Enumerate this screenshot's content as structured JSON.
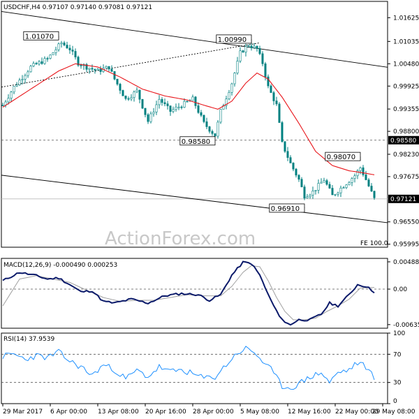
{
  "chart_data": [
    {
      "type": "candlestick",
      "header": "USDCHF,H4  0.97107 0.97140 0.97081 0.97121",
      "watermark": "ActionForex.com",
      "fe_label": "FE 100.0",
      "y_ticks": [
        "1.01625",
        "1.01035",
        "1.00480",
        "0.99925",
        "0.99355",
        "0.98800",
        "0.98230",
        "0.97675",
        "0.96550",
        "0.95995"
      ],
      "ylim": [
        0.9592,
        1.0203
      ],
      "current_price": {
        "value": 0.97121,
        "label": "0.97121"
      },
      "level_line": {
        "value": 0.9858,
        "label": "0.98580"
      },
      "annotations": [
        {
          "label": "1.01070",
          "value": 1.0107,
          "bar": 20
        },
        {
          "label": "1.00990",
          "value": 1.0099,
          "bar": 89
        },
        {
          "label": "0.98580",
          "value": 0.9858,
          "bar": 76
        },
        {
          "label": "0.98070",
          "value": 0.9807,
          "bar": 128
        },
        {
          "label": "0.96910",
          "value": 0.9691,
          "bar": 108
        }
      ],
      "channel_lines": [
        {
          "points": [
            [
              0,
              1.0178
            ],
            [
              133,
              1.0044
            ]
          ],
          "style": "solid"
        },
        {
          "points": [
            [
              0,
              0.9771
            ],
            [
              133,
              0.9657
            ]
          ],
          "style": "solid"
        },
        {
          "points": [
            [
              0,
              0.999
            ],
            [
              92,
              1.01
            ]
          ],
          "style": "dashed"
        }
      ],
      "price_anchors": [
        [
          0,
          0.9945
        ],
        [
          4,
          0.999
        ],
        [
          10,
          1.004
        ],
        [
          16,
          1.006
        ],
        [
          21,
          1.01
        ],
        [
          24,
          1.0085
        ],
        [
          27,
          1.005
        ],
        [
          30,
          1.004
        ],
        [
          34,
          1.003
        ],
        [
          38,
          1.004
        ],
        [
          40,
          1.001
        ],
        [
          44,
          0.996
        ],
        [
          48,
          0.998
        ],
        [
          52,
          0.9905
        ],
        [
          56,
          0.996
        ],
        [
          60,
          0.993
        ],
        [
          64,
          0.9945
        ],
        [
          68,
          0.996
        ],
        [
          72,
          0.99
        ],
        [
          76,
          0.987
        ],
        [
          78,
          0.993
        ],
        [
          82,
          1.0
        ],
        [
          85,
          1.0075
        ],
        [
          88,
          1.0095
        ],
        [
          91,
          1.0085
        ],
        [
          93,
          1.005
        ],
        [
          95,
          0.999
        ],
        [
          98,
          0.9945
        ],
        [
          100,
          0.985
        ],
        [
          103,
          0.98
        ],
        [
          106,
          0.976
        ],
        [
          108,
          0.972
        ],
        [
          111,
          0.973
        ],
        [
          115,
          0.976
        ],
        [
          118,
          0.972
        ],
        [
          122,
          0.9745
        ],
        [
          126,
          0.977
        ],
        [
          128,
          0.979
        ],
        [
          130,
          0.976
        ],
        [
          133,
          0.9712
        ]
      ],
      "ma_anchors": [
        [
          0,
          0.994
        ],
        [
          10,
          0.9985
        ],
        [
          20,
          1.003
        ],
        [
          26,
          1.0048
        ],
        [
          34,
          1.004
        ],
        [
          42,
          1.0015
        ],
        [
          50,
          0.9985
        ],
        [
          58,
          0.9968
        ],
        [
          66,
          0.9958
        ],
        [
          72,
          0.9945
        ],
        [
          77,
          0.9935
        ],
        [
          82,
          0.9955
        ],
        [
          87,
          1.0
        ],
        [
          91,
          1.0025
        ],
        [
          95,
          1.001
        ],
        [
          100,
          0.9965
        ],
        [
          106,
          0.99
        ],
        [
          112,
          0.983
        ],
        [
          118,
          0.9795
        ],
        [
          124,
          0.9782
        ],
        [
          128,
          0.9778
        ],
        [
          133,
          0.9772
        ]
      ]
    },
    {
      "type": "line",
      "title": "MACD(12,26,9) -0.000490 0.000253",
      "y_ticks": [
        "0.004883",
        "0.00",
        "-0.006354"
      ],
      "ylim": [
        -0.007,
        0.0055
      ],
      "zero_line": 0,
      "macd_anchors": [
        [
          0,
          0.0015
        ],
        [
          6,
          0.003
        ],
        [
          12,
          0.0024
        ],
        [
          16,
          0.0018
        ],
        [
          20,
          0.002
        ],
        [
          24,
          0.0008
        ],
        [
          28,
          -0.0005
        ],
        [
          32,
          -0.0003
        ],
        [
          36,
          -0.0022
        ],
        [
          40,
          -0.0025
        ],
        [
          46,
          -0.0018
        ],
        [
          52,
          -0.0025
        ],
        [
          58,
          -0.0012
        ],
        [
          64,
          -0.0008
        ],
        [
          70,
          -0.001
        ],
        [
          74,
          -0.002
        ],
        [
          78,
          -0.001
        ],
        [
          82,
          0.0025
        ],
        [
          86,
          0.0048
        ],
        [
          89,
          0.0046
        ],
        [
          92,
          0.0025
        ],
        [
          95,
          -0.001
        ],
        [
          98,
          -0.004
        ],
        [
          101,
          -0.006
        ],
        [
          103,
          -0.0063
        ],
        [
          106,
          -0.0055
        ],
        [
          110,
          -0.0055
        ],
        [
          114,
          -0.0045
        ],
        [
          117,
          -0.0025
        ],
        [
          120,
          -0.003
        ],
        [
          124,
          -0.001
        ],
        [
          127,
          0.0008
        ],
        [
          130,
          0.0005
        ],
        [
          133,
          -0.0005
        ]
      ],
      "signal_anchors": [
        [
          0,
          -0.003
        ],
        [
          6,
          0.0018
        ],
        [
          12,
          0.0024
        ],
        [
          18,
          0.0018
        ],
        [
          24,
          0.0012
        ],
        [
          30,
          -0.0002
        ],
        [
          36,
          -0.0015
        ],
        [
          42,
          -0.0022
        ],
        [
          48,
          -0.002
        ],
        [
          54,
          -0.002
        ],
        [
          60,
          -0.0015
        ],
        [
          66,
          -0.001
        ],
        [
          72,
          -0.0012
        ],
        [
          78,
          -0.0012
        ],
        [
          82,
          0.0005
        ],
        [
          86,
          0.003
        ],
        [
          89,
          0.0042
        ],
        [
          92,
          0.004
        ],
        [
          95,
          0.0015
        ],
        [
          98,
          -0.0015
        ],
        [
          101,
          -0.004
        ],
        [
          104,
          -0.0055
        ],
        [
          108,
          -0.0055
        ],
        [
          112,
          -0.0052
        ],
        [
          116,
          -0.004
        ],
        [
          120,
          -0.003
        ],
        [
          124,
          -0.0018
        ],
        [
          128,
          0.0002
        ],
        [
          133,
          0.0003
        ]
      ]
    },
    {
      "type": "line",
      "title": "RSI(14) 37.9539",
      "y_ticks": [
        "100",
        "70",
        "30",
        "0"
      ],
      "ylim": [
        0,
        100
      ],
      "levels": [
        70,
        30
      ],
      "rsi_anchors": [
        [
          0,
          67
        ],
        [
          4,
          70
        ],
        [
          8,
          63
        ],
        [
          12,
          68
        ],
        [
          16,
          65
        ],
        [
          20,
          73
        ],
        [
          24,
          60
        ],
        [
          28,
          52
        ],
        [
          32,
          40
        ],
        [
          36,
          55
        ],
        [
          40,
          48
        ],
        [
          44,
          35
        ],
        [
          48,
          47
        ],
        [
          52,
          38
        ],
        [
          56,
          52
        ],
        [
          60,
          45
        ],
        [
          64,
          48
        ],
        [
          68,
          42
        ],
        [
          72,
          36
        ],
        [
          76,
          38
        ],
        [
          80,
          55
        ],
        [
          84,
          72
        ],
        [
          87,
          78
        ],
        [
          90,
          73
        ],
        [
          93,
          60
        ],
        [
          96,
          48
        ],
        [
          100,
          25
        ],
        [
          103,
          22
        ],
        [
          106,
          28
        ],
        [
          110,
          38
        ],
        [
          114,
          44
        ],
        [
          117,
          30
        ],
        [
          120,
          44
        ],
        [
          124,
          48
        ],
        [
          127,
          58
        ],
        [
          130,
          52
        ],
        [
          133,
          38
        ]
      ]
    }
  ],
  "x_labels": [
    "29 Mar 2017",
    "6 Apr 00:00",
    "13 Apr 08:00",
    "20 Apr 16:00",
    "28 Apr 00:00",
    "5 May 08:00",
    "12 May 16:00",
    "22 May 00:00",
    "29 May 08:00"
  ],
  "x_label_bars": [
    0,
    17,
    34,
    51,
    68,
    85,
    102,
    119,
    136
  ],
  "colors": {
    "candle": "#008080",
    "moving_average": "#e8161b",
    "macd": "#0b1a6a",
    "signal": "#a0a0a0",
    "rsi": "#1e90ff",
    "channel": "#000000",
    "panel_border": "#000000",
    "level_fill": "#000000",
    "current_fill": "#000000"
  }
}
